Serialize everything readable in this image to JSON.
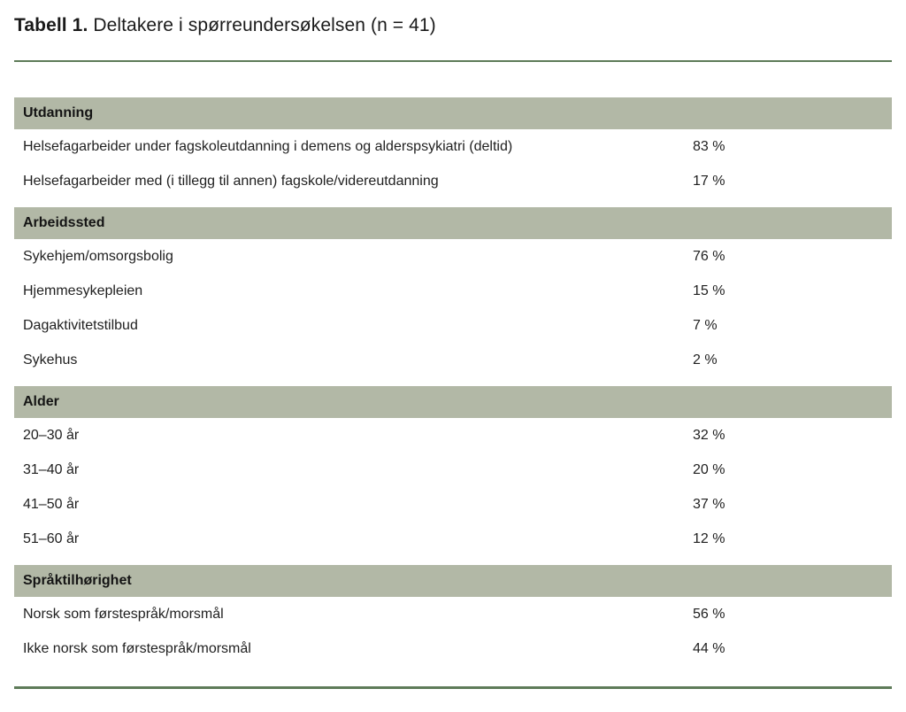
{
  "caption": {
    "label": "Tabell 1.",
    "text": "Deltakere i spørreundersøkelsen (n = 41)"
  },
  "table": {
    "sections": [
      {
        "header": "Utdanning",
        "rows": [
          {
            "label": "Helsefagarbeider under fagskoleutdanning i demens og alderspsykiatri (deltid)",
            "value": "83 %"
          },
          {
            "label": "Helsefagarbeider med (i tillegg til annen) fagskole/videreutdanning",
            "value": "17 %"
          }
        ]
      },
      {
        "header": "Arbeidssted",
        "rows": [
          {
            "label": "Sykehjem/omsorgsbolig",
            "value": "76 %"
          },
          {
            "label": "Hjemmesykepleien",
            "value": "15 %"
          },
          {
            "label": "Dagaktivitetstilbud",
            "value": "7 %"
          },
          {
            "label": "Sykehus",
            "value": "2 %"
          }
        ]
      },
      {
        "header": "Alder",
        "rows": [
          {
            "label": "20–30 år",
            "value": "32 %"
          },
          {
            "label": "31–40 år",
            "value": "20 %"
          },
          {
            "label": "41–50 år",
            "value": "37 %"
          },
          {
            "label": "51–60 år",
            "value": "12 %"
          }
        ]
      },
      {
        "header": "Språktilhørighet",
        "rows": [
          {
            "label": "Norsk som førstespråk/morsmål",
            "value": "56 %"
          },
          {
            "label": "Ikke norsk som førstespråk/morsmål",
            "value": "44 %"
          }
        ]
      }
    ]
  },
  "colors": {
    "header_band": "#b2b8a6",
    "rule_green": "#5e7b59",
    "text": "#1f1f1f"
  }
}
